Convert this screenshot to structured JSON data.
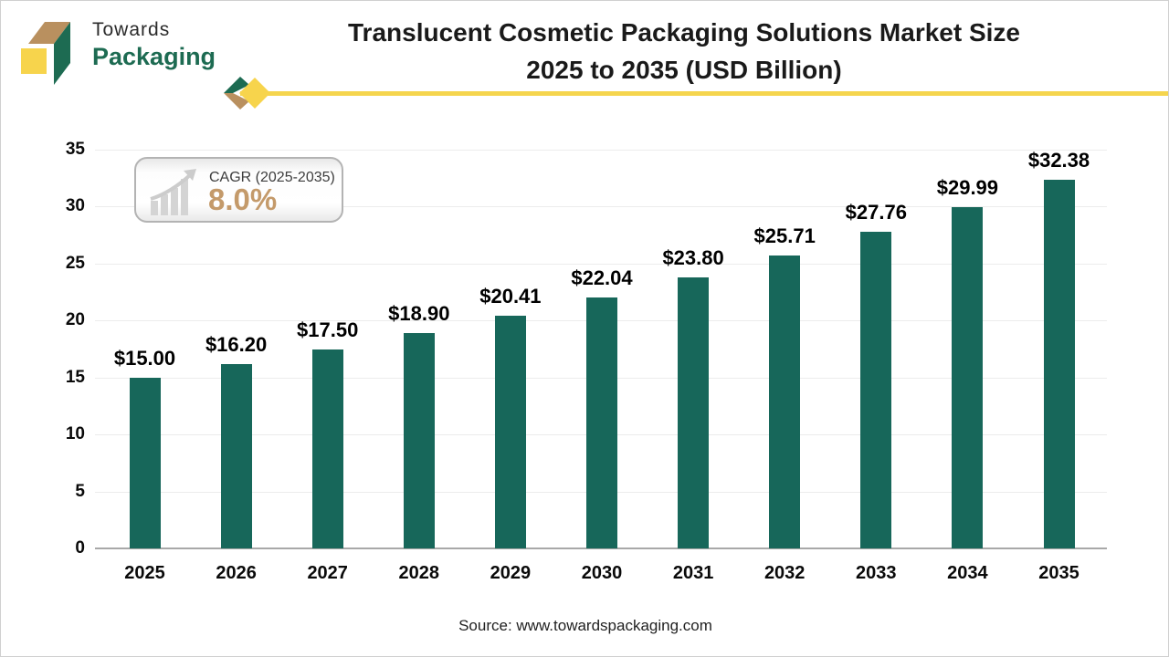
{
  "logo": {
    "line1": "Towards",
    "line2": "Packaging"
  },
  "title": {
    "line1": "Translucent Cosmetic Packaging Solutions Market Size",
    "line2": "2025 to 2035 (USD Billion)"
  },
  "cagr_badge": {
    "label": "CAGR (2025-2035)",
    "value": "8.0%"
  },
  "source": "Source: www.towardspackaging.com",
  "colors": {
    "bar": "#17675a",
    "accent_yellow": "#f5d54e",
    "logo_green": "#1d6b52",
    "logo_tan": "#b9905f",
    "cagr_value": "#c49a6a"
  },
  "chart_data": {
    "type": "bar",
    "title": "Translucent Cosmetic Packaging Solutions Market Size 2025 to 2035 (USD Billion)",
    "categories": [
      "2025",
      "2026",
      "2027",
      "2028",
      "2029",
      "2030",
      "2031",
      "2032",
      "2033",
      "2034",
      "2035"
    ],
    "values": [
      15.0,
      16.2,
      17.5,
      18.9,
      20.41,
      22.04,
      23.8,
      25.71,
      27.76,
      29.99,
      32.38
    ],
    "value_labels": [
      "$15.00",
      "$16.20",
      "$17.50",
      "$18.90",
      "$20.41",
      "$22.04",
      "$23.80",
      "$25.71",
      "$27.76",
      "$29.99",
      "$32.38"
    ],
    "xlabel": "",
    "ylabel": "",
    "ylim": [
      0,
      35
    ],
    "yticks": [
      0,
      5,
      10,
      15,
      20,
      25,
      30,
      35
    ],
    "grid": true,
    "legend": false,
    "bar_color": "#17675a"
  }
}
